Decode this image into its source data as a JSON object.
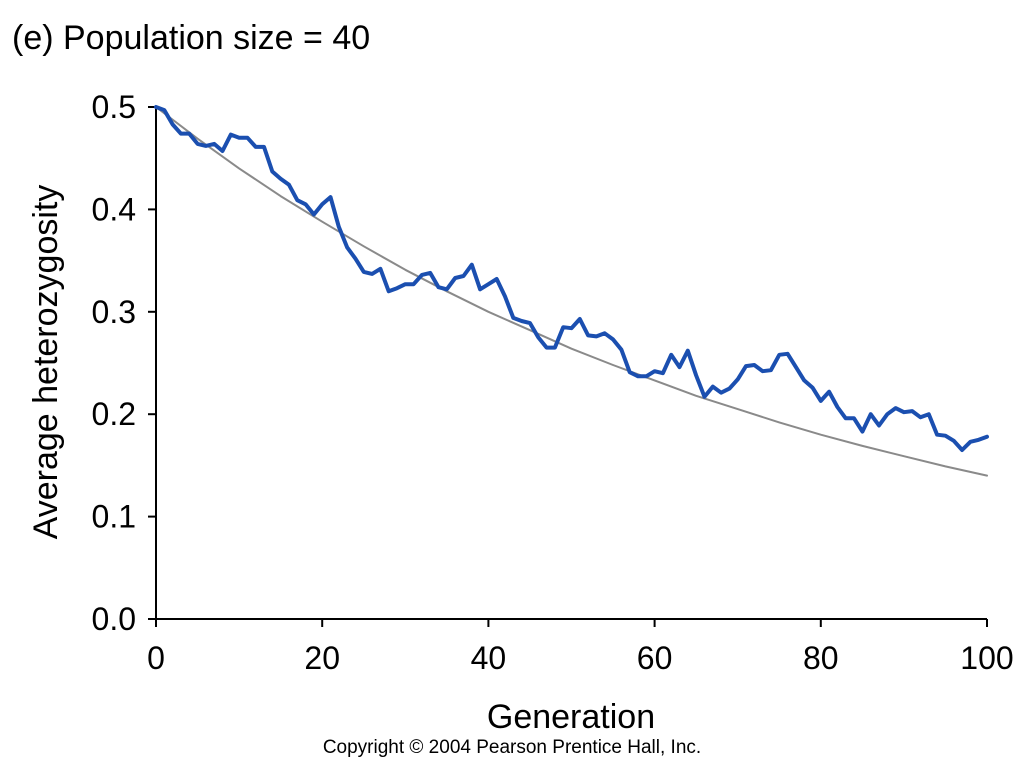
{
  "chart_data": {
    "type": "line",
    "title": "(e) Population size = 40",
    "xlabel": "Generation",
    "ylabel": "Average heterozygosity",
    "xlim": [
      0,
      100
    ],
    "ylim": [
      0,
      0.5
    ],
    "x_ticks": [
      "0",
      "20",
      "40",
      "60",
      "80",
      "100"
    ],
    "y_ticks": [
      "0.0",
      "0.1",
      "0.2",
      "0.3",
      "0.4",
      "0.5"
    ],
    "grid": false,
    "legend": "none",
    "series": [
      {
        "color": "#1b4fb0",
        "x": [
          0,
          1,
          2,
          3,
          4,
          5,
          6,
          7,
          8,
          9,
          10,
          11,
          12,
          13,
          14,
          15,
          16,
          17,
          18,
          19,
          20,
          21,
          22,
          23,
          24,
          25,
          26,
          27,
          28,
          29,
          30,
          31,
          32,
          33,
          34,
          35,
          36,
          37,
          38,
          39,
          40,
          41,
          42,
          43,
          44,
          45,
          46,
          47,
          48,
          49,
          50,
          51,
          52,
          53,
          54,
          55,
          56,
          57,
          58,
          59,
          60,
          61,
          62,
          63,
          64,
          65,
          66,
          67,
          68,
          69,
          70,
          71,
          72,
          73,
          74,
          75,
          76,
          77,
          78,
          79,
          80,
          81,
          82,
          83,
          84,
          85,
          86,
          87,
          88,
          89,
          90,
          91,
          92,
          93,
          94,
          95,
          96,
          97,
          98,
          99,
          100
        ],
        "y": [
          0.5,
          0.497,
          0.483,
          0.474,
          0.474,
          0.464,
          0.462,
          0.464,
          0.457,
          0.473,
          0.47,
          0.47,
          0.461,
          0.461,
          0.437,
          0.43,
          0.424,
          0.409,
          0.405,
          0.395,
          0.405,
          0.412,
          0.383,
          0.363,
          0.352,
          0.339,
          0.337,
          0.342,
          0.32,
          0.323,
          0.327,
          0.327,
          0.336,
          0.338,
          0.324,
          0.322,
          0.333,
          0.335,
          0.346,
          0.322,
          0.327,
          0.332,
          0.315,
          0.294,
          0.291,
          0.289,
          0.275,
          0.265,
          0.265,
          0.285,
          0.284,
          0.293,
          0.277,
          0.276,
          0.279,
          0.273,
          0.263,
          0.241,
          0.237,
          0.237,
          0.242,
          0.24,
          0.258,
          0.246,
          0.262,
          0.238,
          0.217,
          0.227,
          0.221,
          0.225,
          0.234,
          0.247,
          0.248,
          0.242,
          0.243,
          0.258,
          0.259,
          0.246,
          0.233,
          0.226,
          0.213,
          0.222,
          0.207,
          0.196,
          0.196,
          0.183,
          0.2,
          0.189,
          0.2,
          0.206,
          0.202,
          0.203,
          0.197,
          0.2,
          0.18,
          0.179,
          0.174,
          0.165,
          0.173,
          0.175,
          0.178
        ]
      },
      {
        "color": "#8a8a8a",
        "x": [
          0,
          5,
          10,
          15,
          20,
          25,
          30,
          35,
          40,
          45,
          50,
          55,
          60,
          65,
          70,
          75,
          80,
          85,
          90,
          95,
          100
        ],
        "y": [
          0.5,
          0.469,
          0.44,
          0.413,
          0.388,
          0.364,
          0.341,
          0.32,
          0.3,
          0.282,
          0.264,
          0.248,
          0.233,
          0.218,
          0.205,
          0.192,
          0.18,
          0.169,
          0.159,
          0.149,
          0.14
        ]
      }
    ]
  },
  "copyright": "Copyright © 2004 Pearson Prentice Hall, Inc."
}
